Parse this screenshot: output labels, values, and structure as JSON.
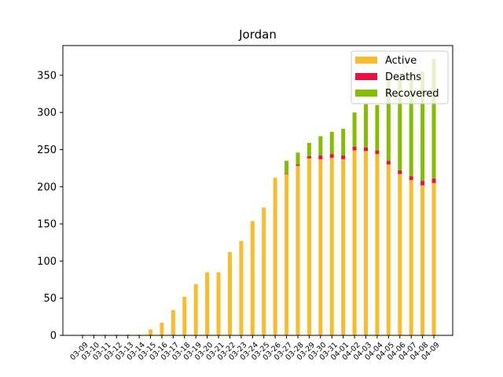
{
  "chart_data": {
    "type": "bar",
    "stacked": true,
    "title": "Jordan",
    "xlabel": "",
    "ylabel": "",
    "ylim": [
      0,
      390
    ],
    "yticks": [
      0,
      50,
      100,
      150,
      200,
      250,
      300,
      350
    ],
    "grid": false,
    "legend_position": "top-right",
    "categories": [
      "03-09",
      "03-10",
      "03-11",
      "03-12",
      "03-13",
      "03-14",
      "03-15",
      "03-16",
      "03-17",
      "03-18",
      "03-19",
      "03-20",
      "03-21",
      "03-22",
      "03-23",
      "03-24",
      "03-25",
      "03-26",
      "03-27",
      "03-28",
      "03-29",
      "03-30",
      "03-31",
      "04-01",
      "04-02",
      "04-03",
      "04-04",
      "04-05",
      "04-06",
      "04-07",
      "04-08",
      "04-09"
    ],
    "series": [
      {
        "name": "Active",
        "color": "#fbbc2b",
        "values": [
          1,
          1,
          1,
          1,
          1,
          1,
          8,
          17,
          34,
          52,
          69,
          85,
          85,
          112,
          127,
          154,
          172,
          212,
          217,
          228,
          238,
          237,
          239,
          237,
          249,
          248,
          244,
          230,
          217,
          209,
          202,
          205
        ]
      },
      {
        "name": "Deaths",
        "color": "#ee0e41",
        "values": [
          0,
          0,
          0,
          0,
          0,
          0,
          0,
          0,
          0,
          0,
          0,
          0,
          0,
          0,
          0,
          0,
          0,
          0,
          1,
          2,
          3,
          5,
          5,
          5,
          5,
          5,
          5,
          5,
          5,
          5,
          6,
          6
        ]
      },
      {
        "name": "Recovered",
        "color": "#85be00",
        "values": [
          0,
          0,
          0,
          0,
          0,
          0,
          0,
          0,
          0,
          0,
          0,
          0,
          0,
          0,
          0,
          0,
          0,
          0,
          17,
          16,
          18,
          26,
          30,
          36,
          46,
          58,
          61,
          112,
          126,
          140,
          147,
          161
        ]
      }
    ]
  }
}
